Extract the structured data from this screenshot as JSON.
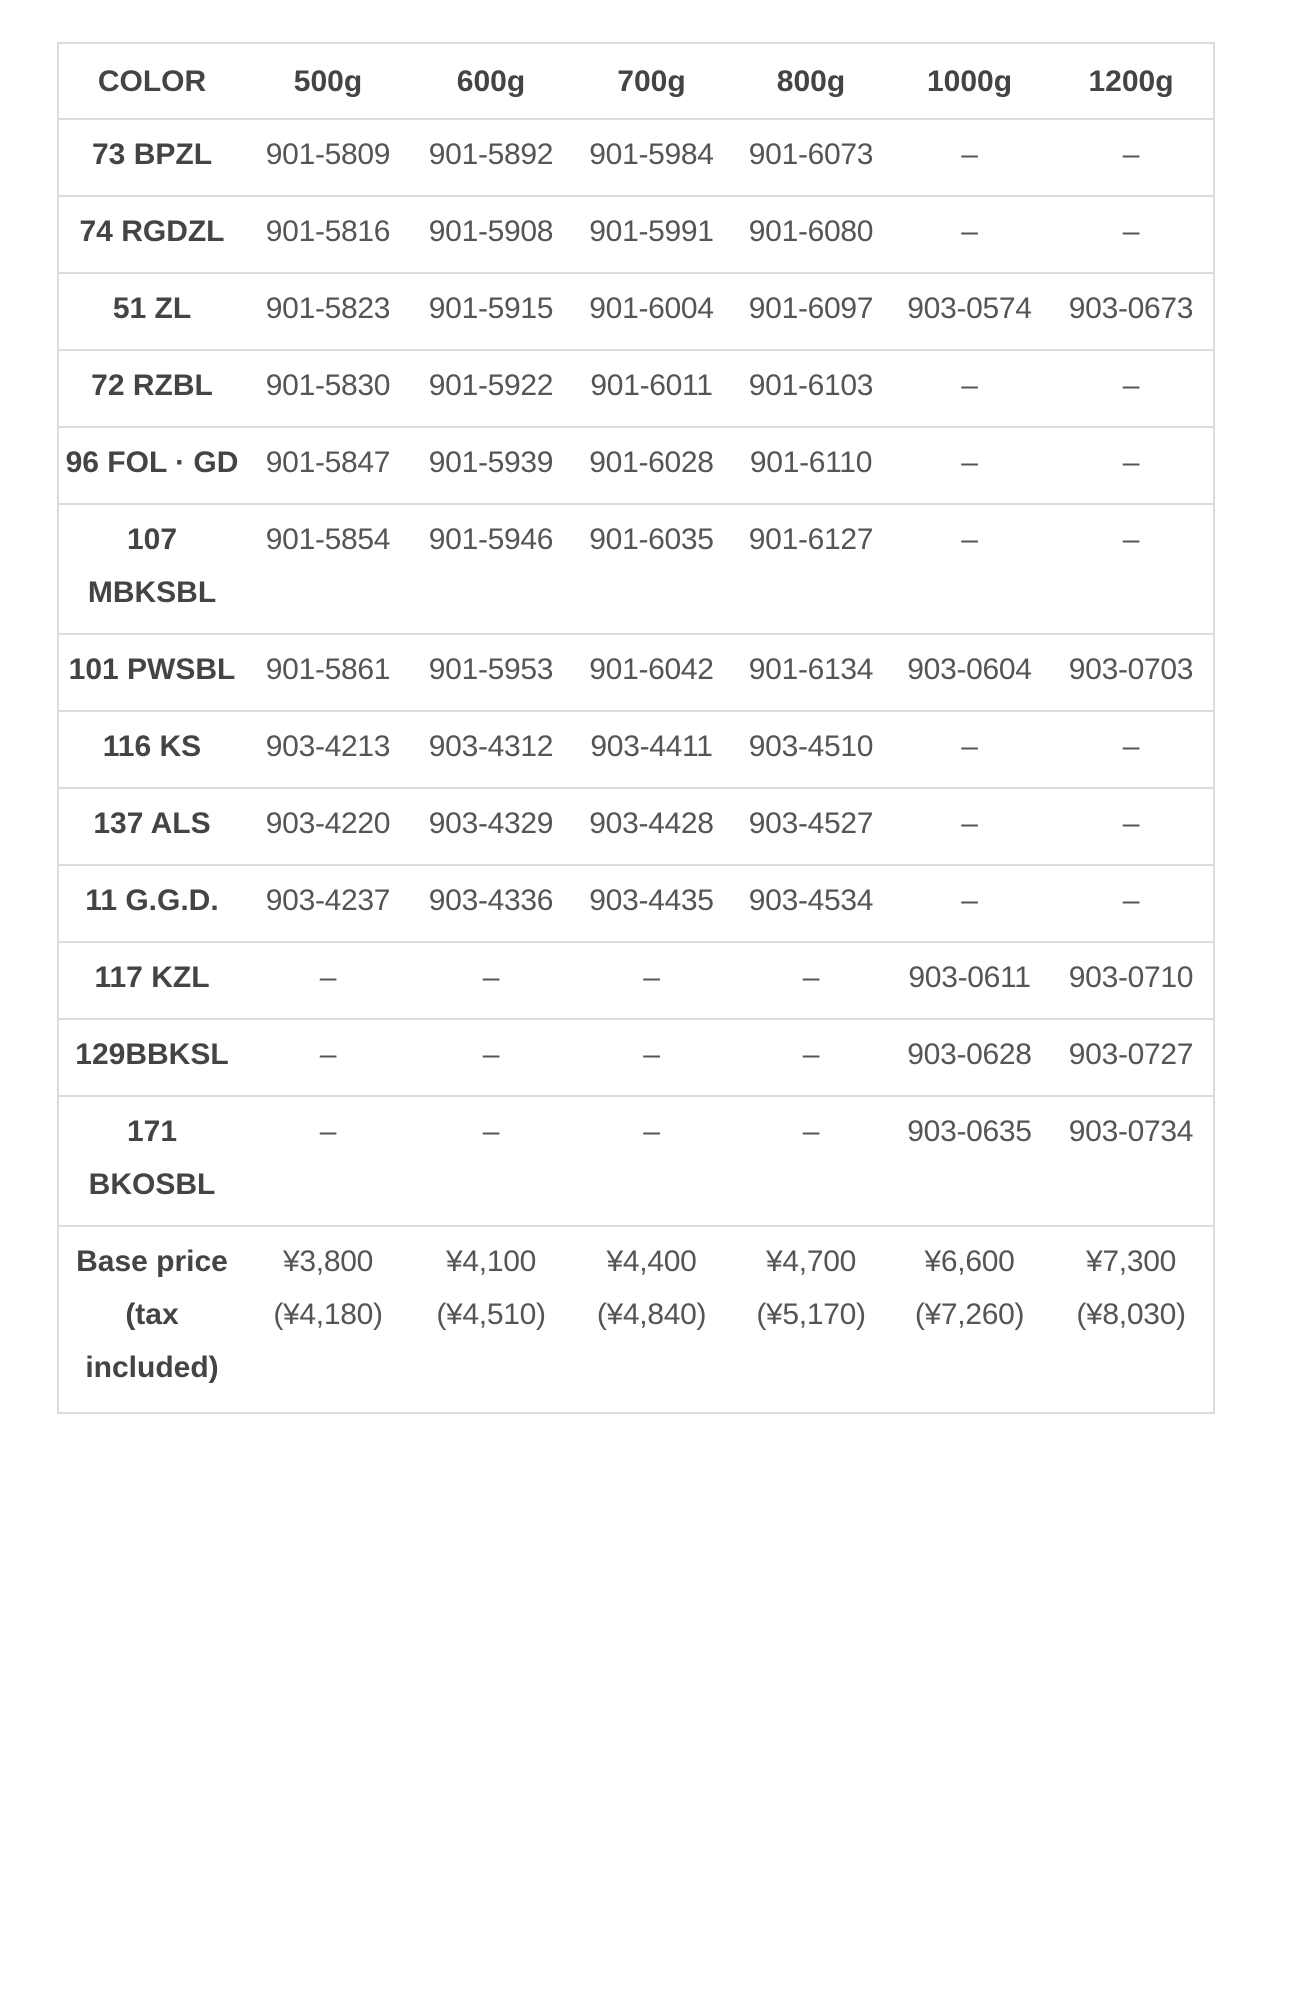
{
  "headers": [
    "COLOR",
    "500g",
    "600g",
    "700g",
    "800g",
    "1000g",
    "1200g"
  ],
  "rows": [
    {
      "color": "73 BPZL",
      "cells": [
        "901-5809",
        "901-5892",
        "901-5984",
        "901-6073",
        "–",
        "–"
      ]
    },
    {
      "color": "74 RGDZL",
      "cells": [
        "901-5816",
        "901-5908",
        "901-5991",
        "901-6080",
        "–",
        "–"
      ]
    },
    {
      "color": "51 ZL",
      "cells": [
        "901-5823",
        "901-5915",
        "901-6004",
        "901-6097",
        "903-0574",
        "903-0673"
      ]
    },
    {
      "color": "72 RZBL",
      "cells": [
        "901-5830",
        "901-5922",
        "901-6011",
        "901-6103",
        "–",
        "–"
      ]
    },
    {
      "color": "96 FOL · GD",
      "cells": [
        "901-5847",
        "901-5939",
        "901-6028",
        "901-6110",
        "–",
        "–"
      ]
    },
    {
      "color": "107 MBKSBL",
      "cells": [
        "901-5854",
        "901-5946",
        "901-6035",
        "901-6127",
        "–",
        "–"
      ]
    },
    {
      "color": "101 PWSBL",
      "cells": [
        "901-5861",
        "901-5953",
        "901-6042",
        "901-6134",
        "903-0604",
        "903-0703"
      ]
    },
    {
      "color": "116 KS",
      "cells": [
        "903-4213",
        "903-4312",
        "903-4411",
        "903-4510",
        "–",
        "–"
      ]
    },
    {
      "color": "137 ALS",
      "cells": [
        "903-4220",
        "903-4329",
        "903-4428",
        "903-4527",
        "–",
        "–"
      ]
    },
    {
      "color": "11 G.G.D.",
      "cells": [
        "903-4237",
        "903-4336",
        "903-4435",
        "903-4534",
        "–",
        "–"
      ]
    },
    {
      "color": "117 KZL",
      "cells": [
        "–",
        "–",
        "–",
        "–",
        "903-0611",
        "903-0710"
      ]
    },
    {
      "color": "129BBKSL",
      "cells": [
        "–",
        "–",
        "–",
        "–",
        "903-0628",
        "903-0727"
      ]
    },
    {
      "color": "171 BKOSBL",
      "cells": [
        "–",
        "–",
        "–",
        "–",
        "903-0635",
        "903-0734"
      ]
    }
  ],
  "price_row": {
    "label": "Base price (tax included)",
    "cells": [
      "¥3,800 (¥4,180)",
      "¥4,100 (¥4,510)",
      "¥4,400 (¥4,840)",
      "¥4,700 (¥5,170)",
      "¥6,600 (¥7,260)",
      "¥7,300 (¥8,030)"
    ]
  }
}
